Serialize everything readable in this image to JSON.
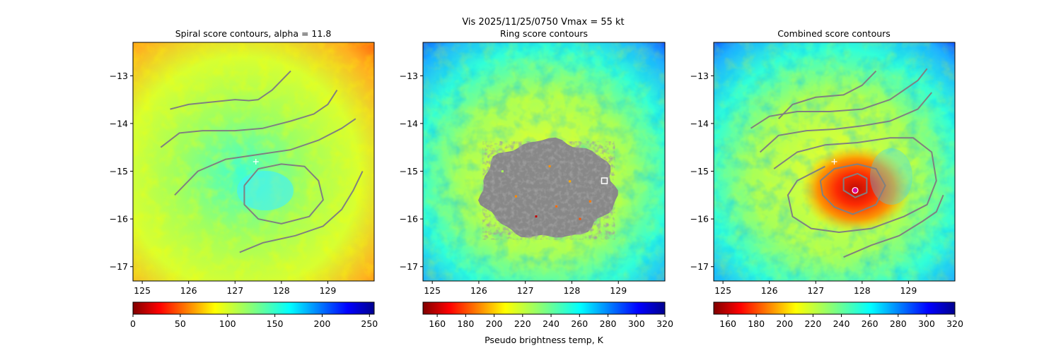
{
  "figure": {
    "suptitle": "Vis  2025/11/25/0750    Vmax = 55 kt",
    "colorbar_label": "Pseudo brightness temp, K"
  },
  "chart_data": [
    {
      "type": "heatmap",
      "title": "Spiral score contours, alpha = 11.8",
      "xlim": [
        124.8,
        130.0
      ],
      "ylim": [
        -17.3,
        -12.3
      ],
      "x_ticks": [
        125,
        126,
        127,
        128,
        129
      ],
      "y_ticks": [
        -13,
        -14,
        -15,
        -16,
        -17
      ],
      "x_tick_labels": [
        "125",
        "126",
        "127",
        "128",
        "129"
      ],
      "y_tick_labels": [
        "−13",
        "−14",
        "−15",
        "−16",
        "−17"
      ],
      "colorbar": {
        "range": [
          0,
          255
        ],
        "ticks": [
          0,
          50,
          100,
          150,
          200,
          250
        ],
        "tick_labels": [
          "0",
          "50",
          "100",
          "150",
          "200",
          "250"
        ],
        "colormap": "jet_r"
      },
      "contours": [
        [
          [
            125.6,
            -13.7
          ],
          [
            126.0,
            -13.6
          ],
          [
            126.5,
            -13.55
          ],
          [
            127.0,
            -13.5
          ],
          [
            127.3,
            -13.52
          ],
          [
            127.5,
            -13.5
          ],
          [
            127.8,
            -13.3
          ],
          [
            128.1,
            -13.0
          ],
          [
            128.2,
            -12.9
          ]
        ],
        [
          [
            125.4,
            -14.5
          ],
          [
            125.8,
            -14.2
          ],
          [
            126.3,
            -14.15
          ],
          [
            127.0,
            -14.15
          ],
          [
            127.6,
            -14.1
          ],
          [
            128.2,
            -13.95
          ],
          [
            128.7,
            -13.8
          ],
          [
            129.0,
            -13.6
          ],
          [
            129.2,
            -13.3
          ]
        ],
        [
          [
            125.7,
            -15.5
          ],
          [
            126.2,
            -15.0
          ],
          [
            126.8,
            -14.75
          ],
          [
            127.5,
            -14.65
          ],
          [
            128.2,
            -14.55
          ],
          [
            128.8,
            -14.35
          ],
          [
            129.3,
            -14.1
          ],
          [
            129.6,
            -13.9
          ]
        ],
        [
          [
            127.2,
            -15.3
          ],
          [
            127.5,
            -14.95
          ],
          [
            128.0,
            -14.85
          ],
          [
            128.5,
            -14.9
          ],
          [
            128.8,
            -15.2
          ],
          [
            128.9,
            -15.6
          ],
          [
            128.6,
            -15.95
          ],
          [
            128.0,
            -16.1
          ],
          [
            127.5,
            -16.0
          ],
          [
            127.2,
            -15.7
          ],
          [
            127.2,
            -15.3
          ]
        ],
        [
          [
            127.1,
            -16.7
          ],
          [
            127.6,
            -16.5
          ],
          [
            128.3,
            -16.35
          ],
          [
            128.9,
            -16.15
          ],
          [
            129.3,
            -15.8
          ],
          [
            129.55,
            -15.4
          ],
          [
            129.75,
            -15.0
          ]
        ]
      ],
      "markers": [
        {
          "type": "plus",
          "x": 127.45,
          "y": -14.8,
          "color": "#ffffff"
        }
      ]
    },
    {
      "type": "heatmap",
      "title": "Ring score contours",
      "xlim": [
        124.8,
        130.0
      ],
      "ylim": [
        -17.3,
        -12.3
      ],
      "x_ticks": [
        125,
        126,
        127,
        128,
        129
      ],
      "y_ticks": [
        -13,
        -14,
        -15,
        -16,
        -17
      ],
      "x_tick_labels": [
        "125",
        "126",
        "127",
        "128",
        "129"
      ],
      "y_tick_labels": [
        "−13",
        "−14",
        "−15",
        "−16",
        "−17"
      ],
      "colorbar": {
        "range": [
          150,
          320
        ],
        "ticks": [
          160,
          180,
          200,
          220,
          240,
          260,
          280,
          300,
          320
        ],
        "tick_labels": [
          "160",
          "180",
          "200",
          "220",
          "240",
          "260",
          "280",
          "300",
          "320"
        ],
        "colormap": "jet_r"
      },
      "masked_region": {
        "center": [
          127.5,
          -15.4
        ],
        "radius_x": 1.45,
        "radius_y": 1.05,
        "color": "#888888"
      },
      "markers": [
        {
          "type": "square",
          "x": 128.7,
          "y": -15.2,
          "color": "#ffffff"
        }
      ]
    },
    {
      "type": "heatmap",
      "title": "Combined score contours",
      "xlim": [
        124.8,
        130.0
      ],
      "ylim": [
        -17.3,
        -12.3
      ],
      "x_ticks": [
        125,
        126,
        127,
        128,
        129
      ],
      "y_ticks": [
        -13,
        -14,
        -15,
        -16,
        -17
      ],
      "x_tick_labels": [
        "125",
        "126",
        "127",
        "128",
        "129"
      ],
      "y_tick_labels": [
        "−13",
        "−14",
        "−15",
        "−16",
        "−17"
      ],
      "colorbar": {
        "range": [
          150,
          320
        ],
        "ticks": [
          160,
          180,
          200,
          220,
          240,
          260,
          280,
          300,
          320
        ],
        "tick_labels": [
          "160",
          "180",
          "200",
          "220",
          "240",
          "260",
          "280",
          "300",
          "320"
        ],
        "colormap": "jet_r"
      },
      "contours": [
        [
          [
            126.2,
            -13.9
          ],
          [
            126.5,
            -13.6
          ],
          [
            127.0,
            -13.45
          ],
          [
            127.6,
            -13.4
          ],
          [
            128.0,
            -13.2
          ],
          [
            128.3,
            -12.9
          ]
        ],
        [
          [
            125.6,
            -14.1
          ],
          [
            126.0,
            -13.85
          ],
          [
            126.6,
            -13.75
          ],
          [
            127.3,
            -13.75
          ],
          [
            128.0,
            -13.7
          ],
          [
            128.6,
            -13.5
          ],
          [
            129.2,
            -13.1
          ],
          [
            129.4,
            -12.85
          ]
        ],
        [
          [
            125.8,
            -14.6
          ],
          [
            126.2,
            -14.25
          ],
          [
            126.8,
            -14.15
          ],
          [
            127.4,
            -14.12
          ],
          [
            128.0,
            -14.05
          ],
          [
            128.6,
            -13.95
          ],
          [
            129.2,
            -13.7
          ],
          [
            129.5,
            -13.35
          ]
        ],
        [
          [
            126.1,
            -14.95
          ],
          [
            126.6,
            -14.6
          ],
          [
            127.2,
            -14.45
          ],
          [
            127.9,
            -14.4
          ],
          [
            128.6,
            -14.3
          ],
          [
            129.1,
            -14.3
          ],
          [
            129.5,
            -14.6
          ],
          [
            129.6,
            -15.2
          ],
          [
            129.4,
            -15.7
          ],
          [
            128.9,
            -15.95
          ],
          [
            128.2,
            -16.2
          ],
          [
            127.5,
            -16.28
          ],
          [
            126.9,
            -16.2
          ],
          [
            126.5,
            -15.95
          ],
          [
            126.4,
            -15.5
          ],
          [
            126.6,
            -15.2
          ],
          [
            127.2,
            -14.9
          ]
        ],
        [
          [
            127.1,
            -15.2
          ],
          [
            127.4,
            -14.95
          ],
          [
            127.9,
            -14.85
          ],
          [
            128.3,
            -14.95
          ],
          [
            128.5,
            -15.3
          ],
          [
            128.3,
            -15.7
          ],
          [
            127.8,
            -15.9
          ],
          [
            127.4,
            -15.75
          ],
          [
            127.15,
            -15.5
          ],
          [
            127.1,
            -15.2
          ]
        ],
        [
          [
            127.6,
            -15.15
          ],
          [
            127.9,
            -15.05
          ],
          [
            128.1,
            -15.15
          ],
          [
            128.1,
            -15.45
          ],
          [
            127.85,
            -15.55
          ],
          [
            127.6,
            -15.4
          ],
          [
            127.6,
            -15.15
          ]
        ],
        [
          [
            127.6,
            -16.8
          ],
          [
            128.2,
            -16.55
          ],
          [
            128.8,
            -16.35
          ],
          [
            129.3,
            -16.05
          ],
          [
            129.6,
            -15.85
          ],
          [
            129.75,
            -15.5
          ]
        ]
      ],
      "markers": [
        {
          "type": "plus",
          "x": 127.4,
          "y": -14.8,
          "color": "#ffffff"
        },
        {
          "type": "dot",
          "x": 127.85,
          "y": -15.4,
          "color": "#e0009a"
        }
      ]
    }
  ]
}
